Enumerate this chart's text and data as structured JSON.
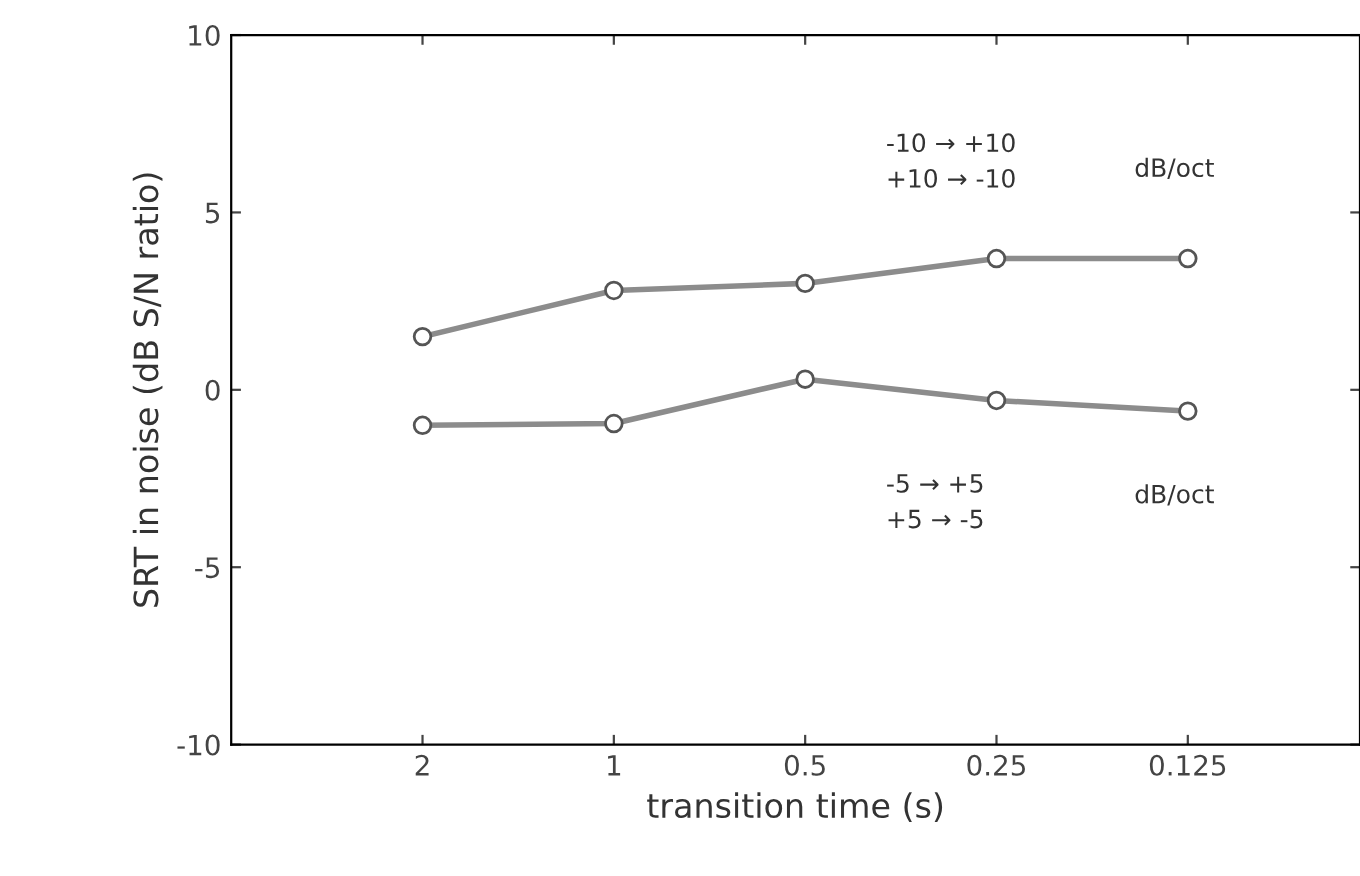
{
  "chart_data": {
    "type": "line",
    "xlabel": "transition time (s)",
    "ylabel": "SRT in noise (dB S/N ratio)",
    "categories": [
      "2",
      "1",
      "0.5",
      "0.25",
      "0.125"
    ],
    "series": [
      {
        "color": "#8c8c8c",
        "values": [
          1.5,
          2.8,
          3.0,
          3.7,
          3.7
        ]
      },
      {
        "color": "#8c8c8c",
        "values": [
          -1.0,
          -0.95,
          0.3,
          -0.3,
          -0.6
        ]
      }
    ],
    "ylim": [
      -10,
      10
    ],
    "yticks": [
      -10,
      -5,
      0,
      5,
      10
    ],
    "marker": "circle",
    "line_style": "solid",
    "grid": false,
    "legend": false,
    "annotations": [
      "-10 → +10\n+10 → -10",
      "dB/oct",
      "-5 → +5\n+5 → -5",
      "dB/oct"
    ]
  }
}
